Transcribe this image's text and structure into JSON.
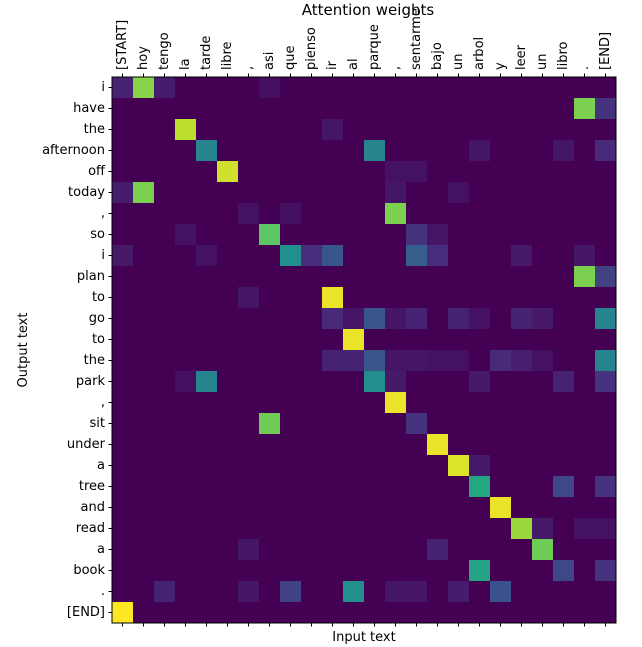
{
  "figure": {
    "title": "Attention weights",
    "xlabel": "Input text",
    "ylabel": "Output text"
  },
  "chart_data": {
    "type": "heatmap",
    "title": "Attention weights",
    "xlabel": "Input text",
    "ylabel": "Output text",
    "colormap": "viridis",
    "value_range": [
      0,
      1
    ],
    "background_color": "#440154",
    "x_labels": [
      "[START]",
      "hoy",
      "tengo",
      "la",
      "tarde",
      "libre",
      ",",
      "asi",
      "que",
      "pienso",
      "ir",
      "al",
      "parque",
      ",",
      "sentarme",
      "bajo",
      "un",
      "arbol",
      "y",
      "leer",
      "un",
      "libro",
      ".",
      "[END]"
    ],
    "y_labels": [
      "i",
      "have",
      "the",
      "afternoon",
      "off",
      "today",
      ",",
      "so",
      "i",
      "plan",
      "to",
      "go",
      "to",
      "the",
      "park",
      ",",
      "sit",
      "under",
      "a",
      "tree",
      "and",
      "read",
      "a",
      "book",
      ".",
      "[END]"
    ],
    "cells": [
      [
        0,
        0,
        0.1
      ],
      [
        0,
        1,
        0.82
      ],
      [
        0,
        2,
        0.08
      ],
      [
        0,
        7,
        0.04
      ],
      [
        1,
        22,
        0.8
      ],
      [
        1,
        23,
        0.15
      ],
      [
        2,
        3,
        0.9
      ],
      [
        2,
        10,
        0.06
      ],
      [
        3,
        4,
        0.45
      ],
      [
        3,
        12,
        0.45
      ],
      [
        3,
        17,
        0.06
      ],
      [
        3,
        21,
        0.06
      ],
      [
        3,
        23,
        0.12
      ],
      [
        4,
        5,
        0.93
      ],
      [
        4,
        13,
        0.05
      ],
      [
        4,
        14,
        0.05
      ],
      [
        5,
        0,
        0.08
      ],
      [
        5,
        1,
        0.8
      ],
      [
        5,
        13,
        0.06
      ],
      [
        5,
        16,
        0.05
      ],
      [
        6,
        6,
        0.05
      ],
      [
        6,
        8,
        0.04
      ],
      [
        6,
        13,
        0.8
      ],
      [
        7,
        3,
        0.05
      ],
      [
        7,
        7,
        0.75
      ],
      [
        7,
        14,
        0.15
      ],
      [
        7,
        15,
        0.06
      ],
      [
        8,
        0,
        0.07
      ],
      [
        8,
        4,
        0.05
      ],
      [
        8,
        8,
        0.5
      ],
      [
        8,
        9,
        0.13
      ],
      [
        8,
        10,
        0.27
      ],
      [
        8,
        14,
        0.3
      ],
      [
        8,
        15,
        0.13
      ],
      [
        8,
        19,
        0.07
      ],
      [
        8,
        22,
        0.06
      ],
      [
        9,
        22,
        0.8
      ],
      [
        9,
        23,
        0.2
      ],
      [
        10,
        6,
        0.06
      ],
      [
        10,
        10,
        0.97
      ],
      [
        11,
        10,
        0.12
      ],
      [
        11,
        11,
        0.06
      ],
      [
        11,
        12,
        0.27
      ],
      [
        11,
        13,
        0.06
      ],
      [
        11,
        14,
        0.1
      ],
      [
        11,
        16,
        0.1
      ],
      [
        11,
        17,
        0.05
      ],
      [
        11,
        19,
        0.1
      ],
      [
        11,
        20,
        0.07
      ],
      [
        11,
        23,
        0.45
      ],
      [
        12,
        11,
        0.97
      ],
      [
        13,
        10,
        0.1
      ],
      [
        13,
        11,
        0.1
      ],
      [
        13,
        12,
        0.27
      ],
      [
        13,
        13,
        0.06
      ],
      [
        13,
        14,
        0.06
      ],
      [
        13,
        15,
        0.05
      ],
      [
        13,
        16,
        0.05
      ],
      [
        13,
        18,
        0.12
      ],
      [
        13,
        19,
        0.09
      ],
      [
        13,
        20,
        0.05
      ],
      [
        13,
        23,
        0.45
      ],
      [
        14,
        3,
        0.04
      ],
      [
        14,
        4,
        0.45
      ],
      [
        14,
        12,
        0.5
      ],
      [
        14,
        13,
        0.07
      ],
      [
        14,
        17,
        0.07
      ],
      [
        14,
        21,
        0.1
      ],
      [
        14,
        23,
        0.15
      ],
      [
        15,
        13,
        0.97
      ],
      [
        16,
        7,
        0.78
      ],
      [
        16,
        14,
        0.15
      ],
      [
        17,
        15,
        0.97
      ],
      [
        18,
        16,
        0.95
      ],
      [
        18,
        17,
        0.07
      ],
      [
        19,
        17,
        0.6
      ],
      [
        19,
        21,
        0.22
      ],
      [
        19,
        23,
        0.15
      ],
      [
        20,
        18,
        0.97
      ],
      [
        21,
        19,
        0.85
      ],
      [
        21,
        20,
        0.07
      ],
      [
        21,
        22,
        0.05
      ],
      [
        21,
        23,
        0.05
      ],
      [
        22,
        6,
        0.06
      ],
      [
        22,
        15,
        0.1
      ],
      [
        22,
        20,
        0.78
      ],
      [
        23,
        17,
        0.58
      ],
      [
        23,
        21,
        0.22
      ],
      [
        23,
        23,
        0.15
      ],
      [
        24,
        2,
        0.1
      ],
      [
        24,
        6,
        0.06
      ],
      [
        24,
        8,
        0.2
      ],
      [
        24,
        11,
        0.5
      ],
      [
        24,
        13,
        0.06
      ],
      [
        24,
        14,
        0.06
      ],
      [
        24,
        16,
        0.08
      ],
      [
        24,
        18,
        0.25
      ],
      [
        25,
        0,
        1.0
      ]
    ]
  }
}
